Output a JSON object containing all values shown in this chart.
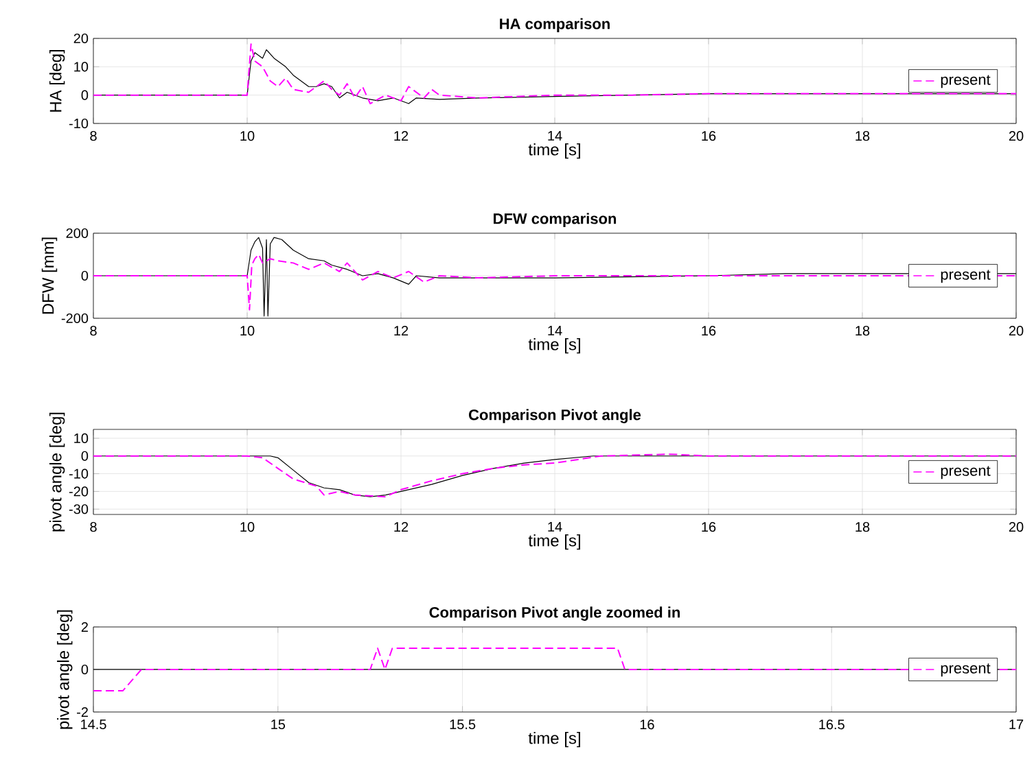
{
  "chart_data": [
    {
      "type": "line",
      "title": "HA comparison",
      "xlabel": "time [s]",
      "ylabel": "HA [deg]",
      "xlim": [
        8,
        20
      ],
      "xticks": [
        8,
        10,
        12,
        14,
        16,
        18,
        20
      ],
      "ylim": [
        -10,
        20
      ],
      "yticks": [
        -10,
        0,
        10,
        20
      ],
      "grid": true,
      "legend": "right",
      "series": [
        {
          "color": "#000000",
          "line_style": "solid",
          "x": [
            8,
            10,
            10.05,
            10.1,
            10.2,
            10.25,
            10.35,
            10.5,
            10.6,
            10.7,
            10.8,
            10.9,
            11,
            11.1,
            11.2,
            11.3,
            11.5,
            11.7,
            11.9,
            12.1,
            12.2,
            12.5,
            13,
            14,
            15,
            16,
            17,
            20
          ],
          "values": [
            0,
            0,
            12,
            15,
            13,
            16,
            13,
            10,
            7,
            5,
            3,
            3,
            4,
            3,
            -1,
            1,
            -1,
            -2,
            -1,
            -3,
            -1,
            -1.5,
            -1,
            -0.5,
            0,
            0.5,
            0.5,
            0.5
          ]
        },
        {
          "name": "present",
          "color": "#ff00ff",
          "line_style": "dashed",
          "x": [
            8,
            10,
            10.05,
            10.1,
            10.2,
            10.3,
            10.4,
            10.5,
            10.6,
            10.8,
            11,
            11.1,
            11.2,
            11.3,
            11.4,
            11.5,
            11.6,
            11.8,
            12,
            12.1,
            12.3,
            12.4,
            12.5,
            13,
            14,
            15,
            16,
            20
          ],
          "values": [
            0,
            0,
            18,
            12,
            10,
            5,
            3,
            6,
            2,
            1,
            5,
            2,
            0,
            4,
            -1,
            3,
            -3,
            0,
            -2,
            3,
            -1,
            2,
            0,
            -1,
            0,
            0,
            0.5,
            0.5
          ]
        }
      ]
    },
    {
      "type": "line",
      "title": "DFW comparison",
      "xlabel": "time [s]",
      "ylabel": "DFW [mm]",
      "xlim": [
        8,
        20
      ],
      "xticks": [
        8,
        10,
        12,
        14,
        16,
        18,
        20
      ],
      "ylim": [
        -200,
        200
      ],
      "yticks": [
        -200,
        0,
        200
      ],
      "grid": true,
      "legend": "right",
      "series": [
        {
          "color": "#000000",
          "line_style": "solid",
          "x": [
            8,
            10,
            10.05,
            10.1,
            10.15,
            10.2,
            10.22,
            10.25,
            10.27,
            10.3,
            10.35,
            10.45,
            10.6,
            10.8,
            11,
            11.1,
            11.3,
            11.5,
            11.7,
            11.9,
            12.1,
            12.2,
            12.5,
            13,
            14,
            16,
            17,
            20
          ],
          "values": [
            0,
            0,
            120,
            160,
            180,
            130,
            -190,
            170,
            -190,
            150,
            180,
            170,
            120,
            80,
            70,
            50,
            30,
            0,
            10,
            -10,
            -40,
            0,
            -10,
            -10,
            -10,
            0,
            10,
            10
          ]
        },
        {
          "name": "present",
          "color": "#ff00ff",
          "line_style": "dashed",
          "x": [
            8,
            10,
            10.03,
            10.06,
            10.1,
            10.15,
            10.2,
            10.3,
            10.4,
            10.6,
            10.8,
            11,
            11.2,
            11.3,
            11.5,
            11.7,
            11.9,
            12.1,
            12.3,
            12.5,
            13,
            14,
            16,
            20
          ],
          "values": [
            0,
            0,
            -160,
            50,
            80,
            100,
            60,
            80,
            70,
            60,
            30,
            60,
            20,
            60,
            -20,
            20,
            -10,
            20,
            -30,
            0,
            -10,
            0,
            0,
            0
          ]
        }
      ]
    },
    {
      "type": "line",
      "title": "Comparison Pivot angle",
      "xlabel": "time [s]",
      "ylabel": "pivot angle [deg]",
      "xlim": [
        8,
        20
      ],
      "xticks": [
        8,
        10,
        12,
        14,
        16,
        18,
        20
      ],
      "ylim": [
        -33,
        15
      ],
      "yticks": [
        -30,
        -20,
        -10,
        0,
        10
      ],
      "grid": true,
      "legend": "right",
      "series": [
        {
          "color": "#000000",
          "line_style": "solid",
          "x": [
            8,
            10.3,
            10.4,
            10.6,
            10.8,
            11,
            11.2,
            11.4,
            11.6,
            11.8,
            12,
            12.4,
            12.8,
            13.2,
            13.6,
            14,
            14.5,
            15,
            20
          ],
          "values": [
            0,
            0,
            -1,
            -8,
            -15,
            -18,
            -19,
            -22,
            -23,
            -22,
            -20,
            -16,
            -11,
            -7,
            -4,
            -2,
            0,
            0,
            0
          ]
        },
        {
          "name": "present",
          "color": "#ff00ff",
          "line_style": "dashed",
          "x": [
            8,
            10,
            10.2,
            10.4,
            10.6,
            10.9,
            11,
            11.2,
            11.4,
            11.8,
            12,
            12.4,
            12.8,
            13.2,
            13.6,
            14,
            14.3,
            14.6,
            15.5,
            16,
            20
          ],
          "values": [
            0,
            0,
            -1,
            -7,
            -13,
            -17,
            -22,
            -20,
            -22,
            -23,
            -19,
            -14,
            -10,
            -7,
            -5,
            -4,
            -2,
            0,
            1,
            0,
            0
          ]
        }
      ]
    },
    {
      "type": "line",
      "title": "Comparison Pivot angle zoomed in",
      "xlabel": "time [s]",
      "ylabel": "pivot angle [deg]",
      "xlim": [
        14.5,
        17
      ],
      "xticks": [
        14.5,
        15,
        15.5,
        16,
        16.5,
        17
      ],
      "ylim": [
        -2,
        2
      ],
      "yticks": [
        -2,
        0,
        2
      ],
      "grid": true,
      "legend": "right",
      "series": [
        {
          "color": "#000000",
          "line_style": "solid",
          "x": [
            14.5,
            17
          ],
          "values": [
            0,
            0
          ]
        },
        {
          "name": "present",
          "color": "#ff00ff",
          "line_style": "dashed",
          "x": [
            14.5,
            14.58,
            14.63,
            15.25,
            15.27,
            15.29,
            15.31,
            15.92,
            15.94,
            17
          ],
          "values": [
            -1,
            -1,
            0,
            0,
            1,
            0,
            1,
            1,
            0,
            0
          ]
        }
      ]
    }
  ]
}
